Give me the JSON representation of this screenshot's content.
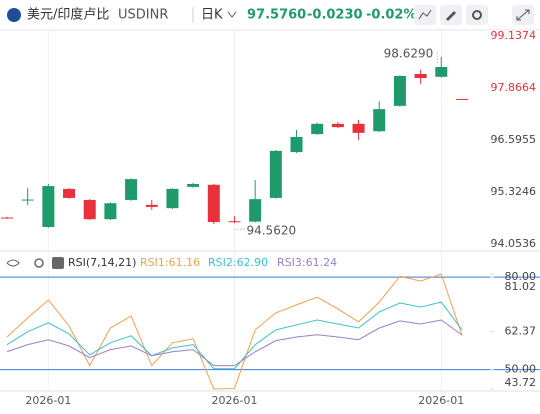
{
  "header": {
    "symbol": "美元/印度卢比",
    "code": "USDINR",
    "period": "日K",
    "price": "97.5760",
    "change": "-0.0230",
    "change_pct": "-0.02%"
  },
  "chart_data": [
    {
      "type": "candlestick",
      "categories": [
        null,
        null,
        "2026-01",
        null,
        null,
        null,
        null,
        null,
        null,
        null,
        null,
        "2026-01",
        null,
        null,
        null,
        null,
        null,
        null,
        null,
        null,
        null,
        "2026-01",
        null
      ],
      "open": [
        94.7,
        95.13,
        94.47,
        95.4,
        95.13,
        94.66,
        95.13,
        95.01,
        94.93,
        95.45,
        95.5,
        94.61,
        94.6,
        95.18,
        96.3,
        96.74,
        96.99,
        96.99,
        96.81,
        97.43,
        98.21,
        98.14,
        97.599
      ],
      "high": [
        94.72,
        95.42,
        95.52,
        95.42,
        95.15,
        95.07,
        95.66,
        95.13,
        95.42,
        95.55,
        95.52,
        94.73,
        95.62,
        96.35,
        96.84,
        97.02,
        97.03,
        97.09,
        97.54,
        98.18,
        98.31,
        98.629,
        97.6
      ],
      "low": [
        94.67,
        95.01,
        94.45,
        95.16,
        94.64,
        94.64,
        95.11,
        94.89,
        94.91,
        95.43,
        94.54,
        94.562,
        94.58,
        95.16,
        96.28,
        96.72,
        96.89,
        96.6,
        96.79,
        97.41,
        97.97,
        98.12,
        97.57
      ],
      "close": [
        94.69,
        95.14,
        95.47,
        95.18,
        94.66,
        95.05,
        95.64,
        94.96,
        95.4,
        95.52,
        94.59,
        94.6,
        95.15,
        96.33,
        96.67,
        96.99,
        96.91,
        96.77,
        97.35,
        98.16,
        98.11,
        98.38,
        97.576
      ],
      "up_color": "#1f9a6a",
      "down_color": "#e8313b",
      "ylim": [
        94.0536,
        99.1374
      ],
      "yticks": [
        99.1374,
        97.8664,
        96.5955,
        95.3246,
        94.0536
      ],
      "annotations": [
        {
          "value": 98.629,
          "label": "98.6290"
        },
        {
          "value": 94.562,
          "label": "94.5620"
        }
      ]
    },
    {
      "type": "line",
      "title": "RSI(7,14,21)",
      "series": [
        {
          "name": "RSI1:61.16",
          "color": "#f0a050",
          "values": [
            60.6,
            66.8,
            72.6,
            64.2,
            51.3,
            63.5,
            67.4,
            51.3,
            58.7,
            60.0,
            43.72,
            43.9,
            62.9,
            68.4,
            71.0,
            73.5,
            69.7,
            65.5,
            71.9,
            80.3,
            78.7,
            81.02,
            61.16
          ]
        },
        {
          "name": "RSI2:62.90",
          "color": "#3cc0d0",
          "values": [
            58.1,
            62.3,
            65.2,
            61.6,
            54.8,
            58.7,
            61.0,
            54.5,
            57.1,
            58.1,
            50.3,
            50.3,
            58.1,
            62.9,
            64.5,
            66.1,
            64.8,
            63.5,
            68.7,
            71.6,
            70.3,
            71.9,
            62.9
          ]
        },
        {
          "name": "RSI3:61.24",
          "color": "#9a80c8",
          "values": [
            55.8,
            58.1,
            59.7,
            57.7,
            53.9,
            56.5,
            57.7,
            54.5,
            55.8,
            56.5,
            51.3,
            51.3,
            55.8,
            59.4,
            60.6,
            61.3,
            60.6,
            59.7,
            63.5,
            65.8,
            64.8,
            66.1,
            61.24
          ]
        }
      ],
      "ylim": [
        43.72,
        81.02
      ],
      "yticks": [
        {
          "value": 80,
          "label": "80.00"
        },
        81.02,
        62.37,
        {
          "value": 50,
          "label": "50.00"
        },
        43.72
      ],
      "reference_lines": [
        50,
        80
      ],
      "reference_color": "#3a7bd5"
    }
  ]
}
